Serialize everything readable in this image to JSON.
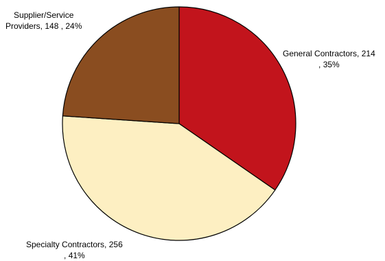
{
  "chart_data": {
    "type": "pie",
    "title": "",
    "start_angle_deg": 0,
    "direction": "clockwise",
    "slices": [
      {
        "name": "General Contractors",
        "value": 214,
        "percent": 35,
        "color": "#c2141c",
        "label_lines": [
          "General Contractors, 214",
          ", 35%"
        ]
      },
      {
        "name": "Specialty Contractors",
        "value": 256,
        "percent": 41,
        "color": "#fdefc2",
        "label_lines": [
          "Specialty Contractors, 256",
          ", 41%"
        ]
      },
      {
        "name": "Supplier/Service Providers",
        "value": 148,
        "percent": 24,
        "color": "#8a4d20",
        "label_lines": [
          "Supplier/Service",
          "Providers, 148 , 24%"
        ]
      }
    ]
  }
}
